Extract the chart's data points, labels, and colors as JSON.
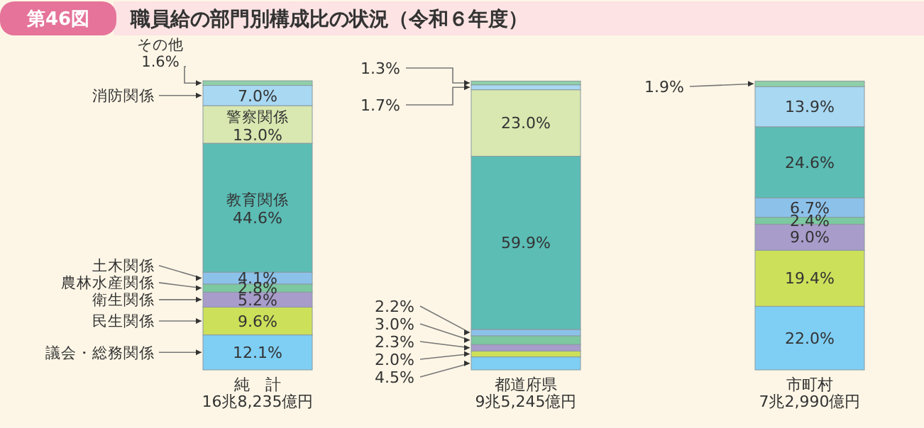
{
  "chart_data": {
    "type": "bar",
    "stacked": true,
    "title": "職員給の部門別構成比の状況（令和６年度）",
    "annotations": [
      "第46図"
    ],
    "categories": [
      "純　計\n16兆8,235億円",
      "都道府県\n9兆5,245億円",
      "市町村\n7兆2,990億円"
    ],
    "series": [
      {
        "name": "議会・総務関係",
        "color": "#7fcff5",
        "values": [
          12.1,
          4.5,
          22.0
        ],
        "value_labels": [
          "12.1%",
          "4.5%",
          "22.0%"
        ]
      },
      {
        "name": "民生関係",
        "color": "#cde05a",
        "values": [
          9.6,
          2.0,
          19.4
        ],
        "value_labels": [
          "9.6%",
          "2.0%",
          "19.4%"
        ]
      },
      {
        "name": "衛生関係",
        "color": "#a89ccb",
        "values": [
          5.2,
          2.3,
          9.0
        ],
        "value_labels": [
          "5.2%",
          "2.3%",
          "9.0%"
        ]
      },
      {
        "name": "農林水産関係",
        "color": "#7cc8a0",
        "values": [
          2.8,
          3.0,
          2.4
        ],
        "value_labels": [
          "2.8%",
          "3.0%",
          "2.4%"
        ]
      },
      {
        "name": "土木関係",
        "color": "#8cc1ea",
        "values": [
          4.1,
          2.2,
          6.7
        ],
        "value_labels": [
          "4.1%",
          "2.2%",
          "6.7%"
        ]
      },
      {
        "name": "教育関係",
        "color": "#5cbdb5",
        "values": [
          44.6,
          59.9,
          24.6
        ],
        "value_labels": [
          "44.6%",
          "59.9%",
          "24.6%"
        ]
      },
      {
        "name": "警察関係",
        "color": "#d9e8b0",
        "values": [
          13.0,
          23.0,
          null
        ],
        "value_labels": [
          "13.0%",
          "23.0%",
          null
        ]
      },
      {
        "name": "消防関係",
        "color": "#a8d8f2",
        "values": [
          7.0,
          1.7,
          13.9
        ],
        "value_labels": [
          "7.0%",
          "1.7%",
          "13.9%"
        ]
      },
      {
        "name": "その他",
        "color": "#8fd0a8",
        "values": [
          1.6,
          1.3,
          1.9
        ],
        "value_labels": [
          "1.6%",
          "1.3%",
          "1.9%"
        ]
      }
    ]
  }
}
